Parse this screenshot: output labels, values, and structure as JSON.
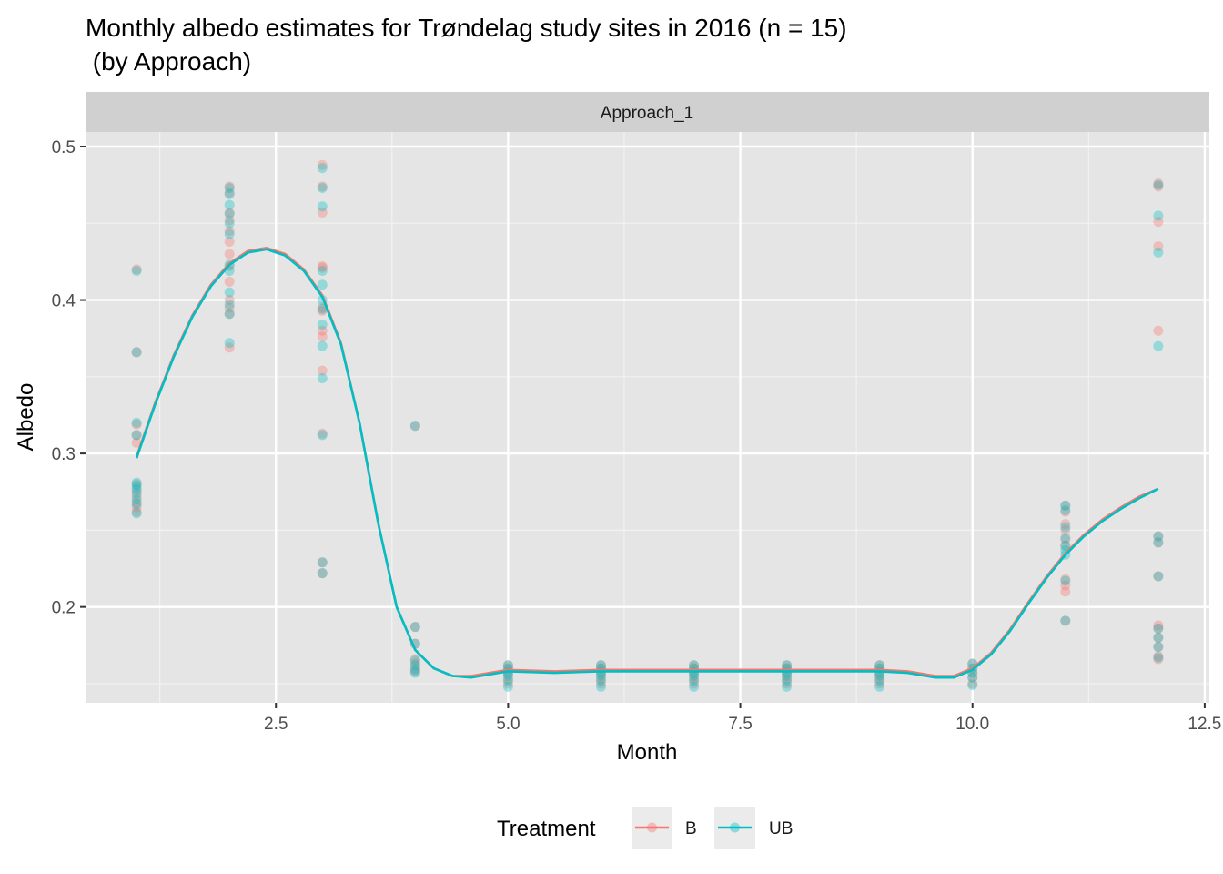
{
  "chart_data": {
    "type": "scatter",
    "title_line1": "Monthly albedo estimates for Trøndelag study sites in 2016 (n = 15)",
    "title_line2": " (by Approach)",
    "facet_label": "Approach_1",
    "xlabel": "Month",
    "ylabel": "Albedo",
    "xlim": [
      0.45,
      12.55
    ],
    "ylim": [
      0.1375,
      0.5095
    ],
    "x_ticks": [
      2.5,
      5.0,
      7.5,
      10.0,
      12.5
    ],
    "x_tick_labels": [
      "2.5",
      "5.0",
      "7.5",
      "10.0",
      "12.5"
    ],
    "y_ticks": [
      0.2,
      0.3,
      0.4,
      0.5
    ],
    "y_tick_labels": [
      "0.2",
      "0.3",
      "0.4",
      "0.5"
    ],
    "grid": true,
    "legend": {
      "position": "bottom",
      "title": "Treatment",
      "entries": [
        "B",
        "UB"
      ]
    },
    "colors": {
      "B": "#F8766D",
      "UB": "#00BFC4",
      "overlap": "#7f9fa0",
      "panel": "#e5e5e5",
      "strip": "#d0d0d0"
    },
    "series": [
      {
        "name": "B",
        "points": [
          [
            1,
            0.42
          ],
          [
            1,
            0.366
          ],
          [
            1,
            0.319
          ],
          [
            1,
            0.312
          ],
          [
            1,
            0.307
          ],
          [
            1,
            0.28
          ],
          [
            1,
            0.276
          ],
          [
            1,
            0.272
          ],
          [
            1,
            0.268
          ],
          [
            1,
            0.265
          ],
          [
            1,
            0.262
          ],
          [
            2,
            0.474
          ],
          [
            2,
            0.47
          ],
          [
            2,
            0.457
          ],
          [
            2,
            0.452
          ],
          [
            2,
            0.445
          ],
          [
            2,
            0.438
          ],
          [
            2,
            0.43
          ],
          [
            2,
            0.422
          ],
          [
            2,
            0.412
          ],
          [
            2,
            0.4
          ],
          [
            2,
            0.395
          ],
          [
            2,
            0.391
          ],
          [
            2,
            0.369
          ],
          [
            3,
            0.488
          ],
          [
            3,
            0.474
          ],
          [
            3,
            0.457
          ],
          [
            3,
            0.422
          ],
          [
            3,
            0.421
          ],
          [
            3,
            0.395
          ],
          [
            3,
            0.393
          ],
          [
            3,
            0.38
          ],
          [
            3,
            0.376
          ],
          [
            3,
            0.354
          ],
          [
            3,
            0.313
          ],
          [
            3,
            0.229
          ],
          [
            3,
            0.222
          ],
          [
            4,
            0.318
          ],
          [
            4,
            0.187
          ],
          [
            4,
            0.176
          ],
          [
            4,
            0.166
          ],
          [
            4,
            0.163
          ],
          [
            4,
            0.16
          ],
          [
            4,
            0.158
          ],
          [
            5,
            0.162
          ],
          [
            5,
            0.16
          ],
          [
            5,
            0.158
          ],
          [
            5,
            0.156
          ],
          [
            5,
            0.153
          ],
          [
            5,
            0.15
          ],
          [
            6,
            0.162
          ],
          [
            6,
            0.16
          ],
          [
            6,
            0.158
          ],
          [
            6,
            0.156
          ],
          [
            6,
            0.153
          ],
          [
            6,
            0.15
          ],
          [
            7,
            0.162
          ],
          [
            7,
            0.16
          ],
          [
            7,
            0.158
          ],
          [
            7,
            0.156
          ],
          [
            7,
            0.153
          ],
          [
            7,
            0.15
          ],
          [
            8,
            0.162
          ],
          [
            8,
            0.16
          ],
          [
            8,
            0.158
          ],
          [
            8,
            0.156
          ],
          [
            8,
            0.153
          ],
          [
            8,
            0.15
          ],
          [
            9,
            0.162
          ],
          [
            9,
            0.16
          ],
          [
            9,
            0.158
          ],
          [
            9,
            0.156
          ],
          [
            9,
            0.153
          ],
          [
            9,
            0.15
          ],
          [
            10,
            0.163
          ],
          [
            10,
            0.16
          ],
          [
            10,
            0.157
          ],
          [
            10,
            0.154
          ],
          [
            10,
            0.15
          ],
          [
            11,
            0.266
          ],
          [
            11,
            0.262
          ],
          [
            11,
            0.254
          ],
          [
            11,
            0.25
          ],
          [
            11,
            0.244
          ],
          [
            11,
            0.24
          ],
          [
            11,
            0.218
          ],
          [
            11,
            0.214
          ],
          [
            11,
            0.21
          ],
          [
            11,
            0.191
          ],
          [
            12,
            0.476
          ],
          [
            12,
            0.474
          ],
          [
            12,
            0.451
          ],
          [
            12,
            0.435
          ],
          [
            12,
            0.38
          ],
          [
            12,
            0.246
          ],
          [
            12,
            0.242
          ],
          [
            12,
            0.22
          ],
          [
            12,
            0.188
          ],
          [
            12,
            0.186
          ],
          [
            12,
            0.18
          ],
          [
            12,
            0.174
          ],
          [
            12,
            0.168
          ],
          [
            12,
            0.166
          ]
        ]
      },
      {
        "name": "UB",
        "points": [
          [
            1,
            0.419
          ],
          [
            1,
            0.366
          ],
          [
            1,
            0.32
          ],
          [
            1,
            0.312
          ],
          [
            1,
            0.281
          ],
          [
            1,
            0.279
          ],
          [
            1,
            0.277
          ],
          [
            1,
            0.274
          ],
          [
            1,
            0.27
          ],
          [
            1,
            0.267
          ],
          [
            1,
            0.261
          ],
          [
            2,
            0.473
          ],
          [
            2,
            0.469
          ],
          [
            2,
            0.462
          ],
          [
            2,
            0.456
          ],
          [
            2,
            0.45
          ],
          [
            2,
            0.443
          ],
          [
            2,
            0.423
          ],
          [
            2,
            0.419
          ],
          [
            2,
            0.405
          ],
          [
            2,
            0.397
          ],
          [
            2,
            0.391
          ],
          [
            2,
            0.372
          ],
          [
            3,
            0.486
          ],
          [
            3,
            0.473
          ],
          [
            3,
            0.461
          ],
          [
            3,
            0.419
          ],
          [
            3,
            0.41
          ],
          [
            3,
            0.4
          ],
          [
            3,
            0.394
          ],
          [
            3,
            0.384
          ],
          [
            3,
            0.37
          ],
          [
            3,
            0.349
          ],
          [
            3,
            0.312
          ],
          [
            3,
            0.229
          ],
          [
            3,
            0.222
          ],
          [
            4,
            0.318
          ],
          [
            4,
            0.187
          ],
          [
            4,
            0.176
          ],
          [
            4,
            0.165
          ],
          [
            4,
            0.162
          ],
          [
            4,
            0.159
          ],
          [
            4,
            0.157
          ],
          [
            5,
            0.162
          ],
          [
            5,
            0.16
          ],
          [
            5,
            0.157
          ],
          [
            5,
            0.155
          ],
          [
            5,
            0.152
          ],
          [
            5,
            0.148
          ],
          [
            6,
            0.162
          ],
          [
            6,
            0.16
          ],
          [
            6,
            0.157
          ],
          [
            6,
            0.155
          ],
          [
            6,
            0.152
          ],
          [
            6,
            0.148
          ],
          [
            7,
            0.162
          ],
          [
            7,
            0.16
          ],
          [
            7,
            0.157
          ],
          [
            7,
            0.155
          ],
          [
            7,
            0.152
          ],
          [
            7,
            0.148
          ],
          [
            8,
            0.162
          ],
          [
            8,
            0.16
          ],
          [
            8,
            0.157
          ],
          [
            8,
            0.155
          ],
          [
            8,
            0.152
          ],
          [
            8,
            0.148
          ],
          [
            9,
            0.162
          ],
          [
            9,
            0.16
          ],
          [
            9,
            0.157
          ],
          [
            9,
            0.155
          ],
          [
            9,
            0.152
          ],
          [
            9,
            0.148
          ],
          [
            10,
            0.163
          ],
          [
            10,
            0.16
          ],
          [
            10,
            0.157
          ],
          [
            10,
            0.154
          ],
          [
            10,
            0.149
          ],
          [
            11,
            0.266
          ],
          [
            11,
            0.263
          ],
          [
            11,
            0.252
          ],
          [
            11,
            0.245
          ],
          [
            11,
            0.24
          ],
          [
            11,
            0.237
          ],
          [
            11,
            0.234
          ],
          [
            11,
            0.217
          ],
          [
            11,
            0.191
          ],
          [
            12,
            0.475
          ],
          [
            12,
            0.455
          ],
          [
            12,
            0.431
          ],
          [
            12,
            0.37
          ],
          [
            12,
            0.246
          ],
          [
            12,
            0.242
          ],
          [
            12,
            0.22
          ],
          [
            12,
            0.186
          ],
          [
            12,
            0.18
          ],
          [
            12,
            0.174
          ],
          [
            12,
            0.167
          ]
        ]
      }
    ],
    "smooth": {
      "B": [
        [
          1.0,
          0.298
        ],
        [
          1.2,
          0.333
        ],
        [
          1.4,
          0.364
        ],
        [
          1.6,
          0.39
        ],
        [
          1.8,
          0.41
        ],
        [
          2.0,
          0.424
        ],
        [
          2.2,
          0.432
        ],
        [
          2.4,
          0.434
        ],
        [
          2.6,
          0.43
        ],
        [
          2.8,
          0.42
        ],
        [
          3.0,
          0.403
        ],
        [
          3.2,
          0.372
        ],
        [
          3.4,
          0.32
        ],
        [
          3.6,
          0.255
        ],
        [
          3.8,
          0.2
        ],
        [
          4.0,
          0.172
        ],
        [
          4.2,
          0.16
        ],
        [
          4.4,
          0.155
        ],
        [
          4.6,
          0.155
        ],
        [
          4.8,
          0.157
        ],
        [
          5.0,
          0.159
        ],
        [
          5.5,
          0.158
        ],
        [
          6.0,
          0.159
        ],
        [
          7.0,
          0.159
        ],
        [
          8.0,
          0.159
        ],
        [
          9.0,
          0.159
        ],
        [
          9.3,
          0.158
        ],
        [
          9.6,
          0.155
        ],
        [
          9.8,
          0.155
        ],
        [
          10.0,
          0.16
        ],
        [
          10.2,
          0.17
        ],
        [
          10.4,
          0.185
        ],
        [
          10.6,
          0.203
        ],
        [
          10.8,
          0.22
        ],
        [
          11.0,
          0.235
        ],
        [
          11.2,
          0.247
        ],
        [
          11.4,
          0.257
        ],
        [
          11.6,
          0.265
        ],
        [
          11.8,
          0.272
        ],
        [
          12.0,
          0.277
        ]
      ],
      "UB": [
        [
          1.0,
          0.297
        ],
        [
          1.2,
          0.332
        ],
        [
          1.4,
          0.363
        ],
        [
          1.6,
          0.389
        ],
        [
          1.8,
          0.409
        ],
        [
          2.0,
          0.423
        ],
        [
          2.2,
          0.431
        ],
        [
          2.4,
          0.433
        ],
        [
          2.6,
          0.429
        ],
        [
          2.8,
          0.419
        ],
        [
          3.0,
          0.402
        ],
        [
          3.2,
          0.371
        ],
        [
          3.4,
          0.32
        ],
        [
          3.6,
          0.255
        ],
        [
          3.8,
          0.2
        ],
        [
          4.0,
          0.172
        ],
        [
          4.2,
          0.16
        ],
        [
          4.4,
          0.155
        ],
        [
          4.6,
          0.154
        ],
        [
          4.8,
          0.156
        ],
        [
          5.0,
          0.158
        ],
        [
          5.5,
          0.157
        ],
        [
          6.0,
          0.158
        ],
        [
          7.0,
          0.158
        ],
        [
          8.0,
          0.158
        ],
        [
          9.0,
          0.158
        ],
        [
          9.3,
          0.157
        ],
        [
          9.6,
          0.154
        ],
        [
          9.8,
          0.154
        ],
        [
          10.0,
          0.159
        ],
        [
          10.2,
          0.169
        ],
        [
          10.4,
          0.184
        ],
        [
          10.6,
          0.202
        ],
        [
          10.8,
          0.219
        ],
        [
          11.0,
          0.234
        ],
        [
          11.2,
          0.246
        ],
        [
          11.4,
          0.256
        ],
        [
          11.6,
          0.264
        ],
        [
          11.8,
          0.271
        ],
        [
          12.0,
          0.277
        ]
      ]
    }
  }
}
